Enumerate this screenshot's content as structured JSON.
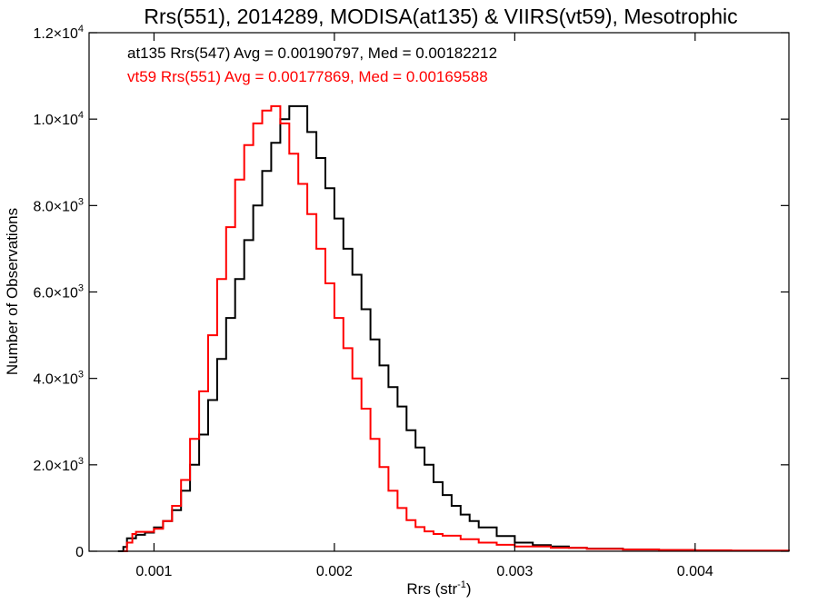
{
  "chart_data": {
    "type": "line",
    "title": "Rrs(551), 2014289, MODISA(at135) & VIIRS(vt59), Mesotrophic",
    "xlabel": {
      "base": "Rrs (str",
      "sup": "-1",
      "close": ")"
    },
    "ylabel": "Number of Observations",
    "xlim": [
      0.00064,
      0.00452
    ],
    "ylim": [
      0,
      12000
    ],
    "grid": false,
    "step": true,
    "x_ticks": [
      {
        "value": 0.001,
        "label": "0.001"
      },
      {
        "value": 0.002,
        "label": "0.002"
      },
      {
        "value": 0.003,
        "label": "0.003"
      },
      {
        "value": 0.004,
        "label": "0.004"
      }
    ],
    "y_ticks": [
      {
        "value": 0,
        "label": "0",
        "sup": ""
      },
      {
        "value": 2000,
        "label": "2.0×10",
        "sup": "3"
      },
      {
        "value": 4000,
        "label": "4.0×10",
        "sup": "3"
      },
      {
        "value": 6000,
        "label": "6.0×10",
        "sup": "3"
      },
      {
        "value": 8000,
        "label": "8.0×10",
        "sup": "3"
      },
      {
        "value": 10000,
        "label": "1.0×10",
        "sup": "4"
      },
      {
        "value": 12000,
        "label": "1.2×10",
        "sup": "4"
      }
    ],
    "annotations": [
      {
        "text": "at135 Rrs(547) Avg = 0.00190797, Med = 0.00182212",
        "color": "#000000"
      },
      {
        "text": "vt59 Rrs(551) Avg = 0.00177869, Med = 0.00169588",
        "color": "#ff0000"
      }
    ],
    "series": [
      {
        "color": "#000000",
        "points": [
          [
            0.0008,
            0
          ],
          [
            0.00083,
            100
          ],
          [
            0.00085,
            300
          ],
          [
            0.0009,
            380
          ],
          [
            0.00095,
            430
          ],
          [
            0.001,
            550
          ],
          [
            0.00105,
            700
          ],
          [
            0.0011,
            950
          ],
          [
            0.00115,
            1400
          ],
          [
            0.0012,
            2000
          ],
          [
            0.00125,
            2700
          ],
          [
            0.0013,
            3500
          ],
          [
            0.00135,
            4450
          ],
          [
            0.0014,
            5400
          ],
          [
            0.00145,
            6300
          ],
          [
            0.0015,
            7200
          ],
          [
            0.00155,
            8000
          ],
          [
            0.0016,
            8800
          ],
          [
            0.00165,
            9450
          ],
          [
            0.0017,
            10000
          ],
          [
            0.00175,
            10300
          ],
          [
            0.0018,
            10300
          ],
          [
            0.00185,
            9700
          ],
          [
            0.0019,
            9100
          ],
          [
            0.00195,
            8400
          ],
          [
            0.002,
            7700
          ],
          [
            0.00205,
            7000
          ],
          [
            0.0021,
            6400
          ],
          [
            0.00215,
            5600
          ],
          [
            0.0022,
            4900
          ],
          [
            0.00225,
            4300
          ],
          [
            0.0023,
            3800
          ],
          [
            0.00235,
            3350
          ],
          [
            0.0024,
            2800
          ],
          [
            0.00245,
            2400
          ],
          [
            0.0025,
            2000
          ],
          [
            0.00255,
            1600
          ],
          [
            0.0026,
            1300
          ],
          [
            0.00265,
            1050
          ],
          [
            0.0027,
            850
          ],
          [
            0.00275,
            700
          ],
          [
            0.0028,
            550
          ],
          [
            0.0029,
            350
          ],
          [
            0.003,
            200
          ],
          [
            0.0031,
            140
          ],
          [
            0.0032,
            110
          ],
          [
            0.0033,
            80
          ],
          [
            0.0034,
            60
          ],
          [
            0.0036,
            40
          ],
          [
            0.0038,
            25
          ],
          [
            0.004,
            15
          ],
          [
            0.0042,
            10
          ],
          [
            0.00452,
            5
          ]
        ]
      },
      {
        "color": "#ff0000",
        "points": [
          [
            0.00083,
            0
          ],
          [
            0.00085,
            200
          ],
          [
            0.00088,
            400
          ],
          [
            0.0009,
            450
          ],
          [
            0.00095,
            450
          ],
          [
            0.001,
            520
          ],
          [
            0.00105,
            700
          ],
          [
            0.0011,
            1050
          ],
          [
            0.00115,
            1650
          ],
          [
            0.0012,
            2600
          ],
          [
            0.00125,
            3700
          ],
          [
            0.0013,
            5000
          ],
          [
            0.00135,
            6300
          ],
          [
            0.0014,
            7500
          ],
          [
            0.00145,
            8600
          ],
          [
            0.0015,
            9400
          ],
          [
            0.00155,
            9900
          ],
          [
            0.0016,
            10200
          ],
          [
            0.00165,
            10300
          ],
          [
            0.0017,
            9900
          ],
          [
            0.00175,
            9200
          ],
          [
            0.0018,
            8500
          ],
          [
            0.00185,
            7800
          ],
          [
            0.0019,
            7000
          ],
          [
            0.00195,
            6200
          ],
          [
            0.002,
            5400
          ],
          [
            0.00205,
            4700
          ],
          [
            0.0021,
            4000
          ],
          [
            0.00215,
            3300
          ],
          [
            0.0022,
            2600
          ],
          [
            0.00225,
            1950
          ],
          [
            0.0023,
            1400
          ],
          [
            0.00235,
            1000
          ],
          [
            0.0024,
            720
          ],
          [
            0.00245,
            560
          ],
          [
            0.0025,
            460
          ],
          [
            0.00255,
            400
          ],
          [
            0.0026,
            360
          ],
          [
            0.0027,
            280
          ],
          [
            0.0028,
            200
          ],
          [
            0.0029,
            150
          ],
          [
            0.003,
            110
          ],
          [
            0.0032,
            80
          ],
          [
            0.0034,
            55
          ],
          [
            0.0036,
            40
          ],
          [
            0.0038,
            30
          ],
          [
            0.004,
            20
          ],
          [
            0.0042,
            15
          ],
          [
            0.00452,
            10
          ]
        ]
      }
    ]
  }
}
